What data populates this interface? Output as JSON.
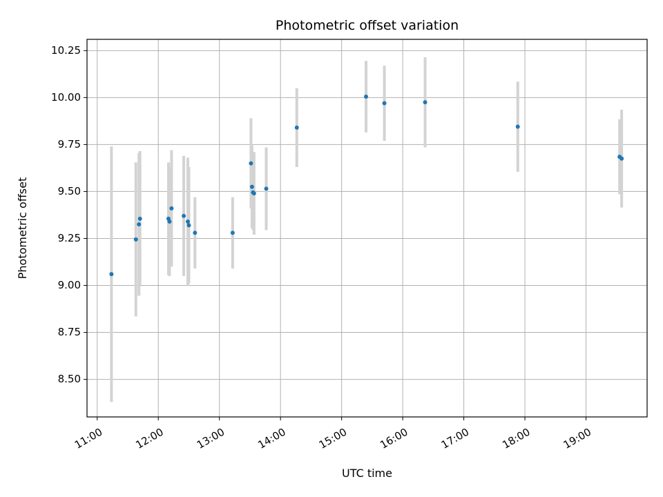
{
  "chart_data": {
    "type": "scatter",
    "title": "Photometric offset variation",
    "xlabel": "UTC time",
    "ylabel": "Photometric offset",
    "x_is_time": true,
    "xlim": [
      "10:50",
      "20:00"
    ],
    "ylim": [
      8.3,
      10.31
    ],
    "x_ticks": [
      "11:00",
      "12:00",
      "13:00",
      "14:00",
      "15:00",
      "16:00",
      "17:00",
      "18:00",
      "19:00"
    ],
    "y_ticks": [
      "8.50",
      "8.75",
      "9.00",
      "9.25",
      "9.50",
      "9.75",
      "10.00",
      "10.25"
    ],
    "grid": true,
    "colors": {
      "marker": "#1f77b4",
      "errorbar": "#d3d3d3",
      "grid": "#b0b0b0"
    },
    "series": [
      {
        "points": [
          {
            "x": "11:14",
            "y": 9.06,
            "yerr": 0.68
          },
          {
            "x": "11:38",
            "y": 9.245,
            "yerr": 0.41
          },
          {
            "x": "11:41",
            "y": 9.325,
            "yerr": 0.38
          },
          {
            "x": "11:42",
            "y": 9.355,
            "yerr": 0.36
          },
          {
            "x": "12:10",
            "y": 9.355,
            "yerr": 0.3
          },
          {
            "x": "12:11",
            "y": 9.34,
            "yerr": 0.29
          },
          {
            "x": "12:13",
            "y": 9.41,
            "yerr": 0.31
          },
          {
            "x": "12:25",
            "y": 9.37,
            "yerr": 0.32
          },
          {
            "x": "12:29",
            "y": 9.34,
            "yerr": 0.34
          },
          {
            "x": "12:30",
            "y": 9.32,
            "yerr": 0.31
          },
          {
            "x": "12:36",
            "y": 9.28,
            "yerr": 0.19
          },
          {
            "x": "13:13",
            "y": 9.28,
            "yerr": 0.19
          },
          {
            "x": "13:31",
            "y": 9.65,
            "yerr": 0.24
          },
          {
            "x": "13:32",
            "y": 9.525,
            "yerr": 0.22
          },
          {
            "x": "13:33",
            "y": 9.495,
            "yerr": 0.2
          },
          {
            "x": "13:34",
            "y": 9.49,
            "yerr": 0.22
          },
          {
            "x": "13:46",
            "y": 9.515,
            "yerr": 0.22
          },
          {
            "x": "14:16",
            "y": 9.84,
            "yerr": 0.21
          },
          {
            "x": "15:24",
            "y": 10.005,
            "yerr": 0.19
          },
          {
            "x": "15:42",
            "y": 9.97,
            "yerr": 0.2
          },
          {
            "x": "16:22",
            "y": 9.975,
            "yerr": 0.24
          },
          {
            "x": "17:53",
            "y": 9.845,
            "yerr": 0.24
          },
          {
            "x": "19:33",
            "y": 9.685,
            "yerr": 0.2
          },
          {
            "x": "19:35",
            "y": 9.675,
            "yerr": 0.26
          }
        ]
      }
    ]
  }
}
